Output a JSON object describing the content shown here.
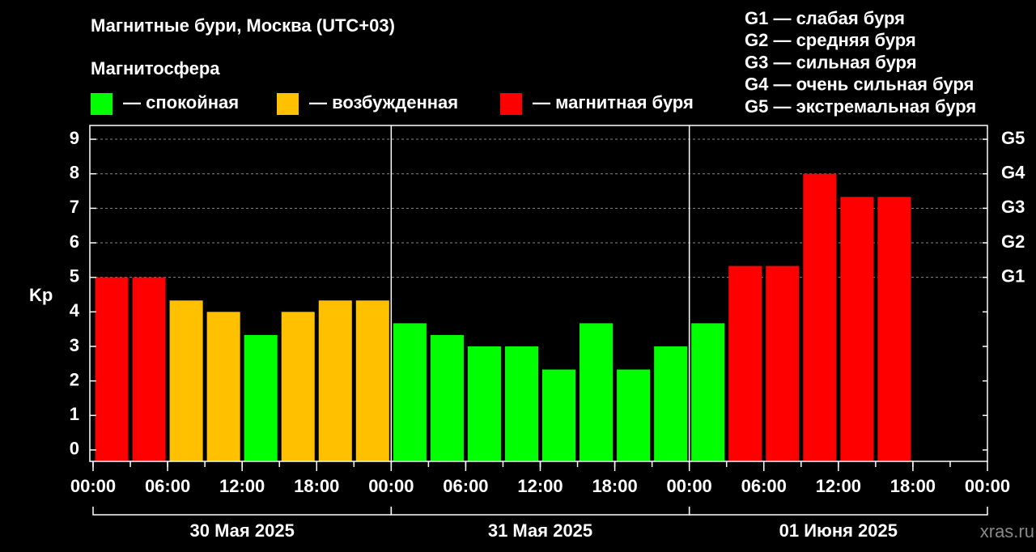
{
  "chart_data": {
    "type": "bar",
    "title": "Магнитные бури, Москва (UTC+03)",
    "legend_title": "Магнитосфера",
    "legend": [
      {
        "name": "— спокойная",
        "color": "#00ff00"
      },
      {
        "name": "— возбужденная",
        "color": "#ffc000"
      },
      {
        "name": "— магнитная буря",
        "color": "#ff0000"
      }
    ],
    "storm_levels": [
      "G1 — слабая буря",
      "G2 — средняя буря",
      "G3 — сильная буря",
      "G4 — очень сильная буря",
      "G5 — экстремальная буря"
    ],
    "ylabel": "Kp",
    "x": [
      0,
      3,
      6,
      9,
      12,
      15,
      18,
      21,
      24,
      27,
      30,
      33,
      36,
      39,
      42,
      45,
      48,
      51,
      54,
      57,
      60,
      63,
      66,
      69
    ],
    "values": [
      5,
      5,
      4.33,
      4,
      3.33,
      4,
      4.33,
      4.33,
      3.67,
      3.33,
      3,
      3,
      2.33,
      3.67,
      2.33,
      3,
      3.67,
      5.33,
      5.33,
      8,
      7.33,
      7.33,
      null,
      null
    ],
    "colors": [
      "#ff0000",
      "#ff0000",
      "#ffc000",
      "#ffc000",
      "#00ff00",
      "#ffc000",
      "#ffc000",
      "#ffc000",
      "#00ff00",
      "#00ff00",
      "#00ff00",
      "#00ff00",
      "#00ff00",
      "#00ff00",
      "#00ff00",
      "#00ff00",
      "#00ff00",
      "#ff0000",
      "#ff0000",
      "#ff0000",
      "#ff0000",
      "#ff0000",
      null,
      null
    ],
    "xlim": [
      0,
      72
    ],
    "xticks": [
      {
        "value": 0,
        "label": "00:00"
      },
      {
        "value": 6,
        "label": "06:00"
      },
      {
        "value": 12,
        "label": "12:00"
      },
      {
        "value": 18,
        "label": "18:00"
      },
      {
        "value": 24,
        "label": "00:00"
      },
      {
        "value": 30,
        "label": "06:00"
      },
      {
        "value": 36,
        "label": "12:00"
      },
      {
        "value": 42,
        "label": "18:00"
      },
      {
        "value": 48,
        "label": "00:00"
      },
      {
        "value": 54,
        "label": "06:00"
      },
      {
        "value": 60,
        "label": "12:00"
      },
      {
        "value": 66,
        "label": "18:00"
      },
      {
        "value": 72,
        "label": "00:00"
      }
    ],
    "days": [
      "30 Мая 2025",
      "31 Мая 2025",
      "01 Июня 2025"
    ],
    "ylim": [
      -0.33,
      9.4
    ],
    "yticks": [
      0,
      1,
      2,
      3,
      4,
      5,
      6,
      7,
      8,
      9
    ],
    "y2lim": [
      -0.33,
      9.4
    ],
    "y2ticks": [
      {
        "value": 5,
        "label": "G1"
      },
      {
        "value": 6,
        "label": "G2"
      },
      {
        "value": 7,
        "label": "G3"
      },
      {
        "value": 8,
        "label": "G4"
      },
      {
        "value": 9,
        "label": "G5"
      }
    ],
    "grid": true,
    "watermark": "xras.ru"
  }
}
